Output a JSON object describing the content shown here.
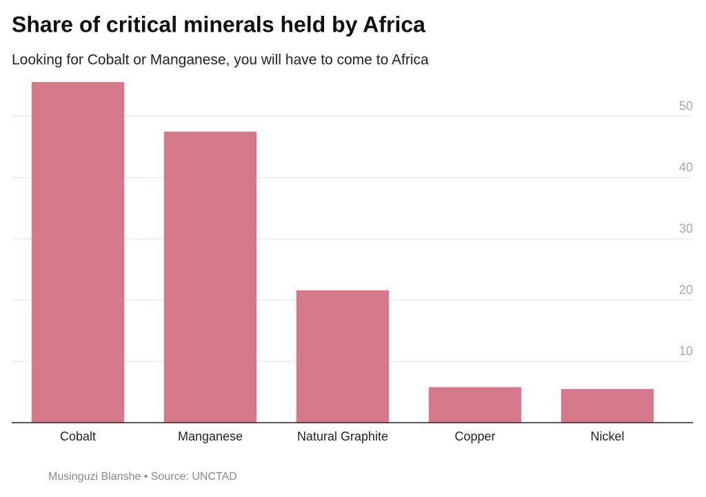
{
  "chart_data": {
    "type": "bar",
    "title": "Share of critical minerals held by Africa",
    "subtitle": "Looking for Cobalt or Manganese, you will have to come to Africa",
    "categories": [
      "Cobalt",
      "Manganese",
      "Natural Graphite",
      "Copper",
      "Nickel"
    ],
    "values": [
      55.6,
      47.5,
      21.6,
      5.8,
      5.5
    ],
    "color": "#d5798a",
    "ylim": [
      0,
      56
    ],
    "yticks": [
      10,
      20,
      30,
      40,
      50
    ],
    "grid": true,
    "source": "Musinguzi Blanshe • Source: UNCTAD"
  }
}
